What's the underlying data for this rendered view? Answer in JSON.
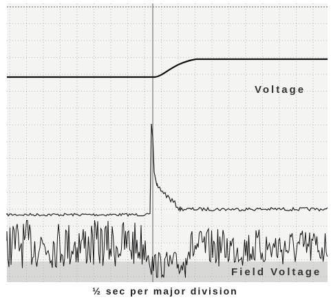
{
  "traces": {
    "upper_label": "Voltage",
    "lower_label": "Field Voltage"
  },
  "caption": "½ sec per major division"
}
